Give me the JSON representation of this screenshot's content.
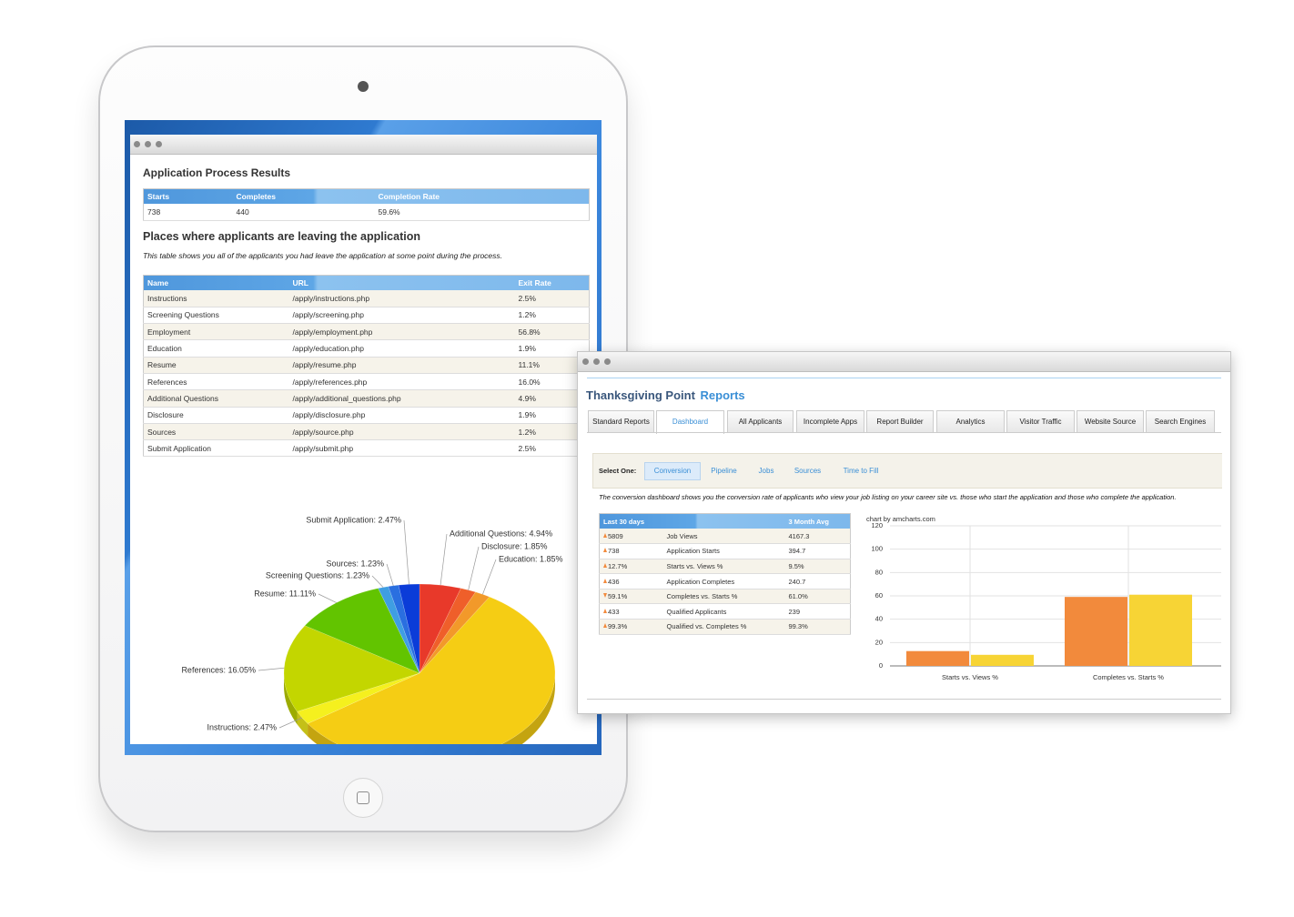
{
  "tablet": {
    "results": {
      "title": "Application Process Results",
      "columns": [
        "Starts",
        "Completes",
        "Completion Rate"
      ],
      "row": [
        "738",
        "440",
        "59.6%"
      ]
    },
    "exits": {
      "title": "Places where applicants are leaving the application",
      "description": "This table shows you all of the applicants you had leave the application at some point during the process.",
      "columns": [
        "Name",
        "URL",
        "Exit Rate"
      ],
      "rows": [
        [
          "Instructions",
          "/apply/instructions.php",
          "2.5%"
        ],
        [
          "Screening Questions",
          "/apply/screening.php",
          "1.2%"
        ],
        [
          "Employment",
          "/apply/employment.php",
          "56.8%"
        ],
        [
          "Education",
          "/apply/education.php",
          "1.9%"
        ],
        [
          "Resume",
          "/apply/resume.php",
          "11.1%"
        ],
        [
          "References",
          "/apply/references.php",
          "16.0%"
        ],
        [
          "Additional Questions",
          "/apply/additional_questions.php",
          "4.9%"
        ],
        [
          "Disclosure",
          "/apply/disclosure.php",
          "1.9%"
        ],
        [
          "Sources",
          "/apply/source.php",
          "1.2%"
        ],
        [
          "Submit Application",
          "/apply/submit.php",
          "2.5%"
        ]
      ]
    },
    "pie_chart": {
      "type": "pie",
      "labels": [
        "Additional Questions: 4.94%",
        "Disclosure: 1.85%",
        "Education: 1.85%",
        null,
        "Instructions: 2.47%",
        "References: 16.05%",
        "Resume: 11.11%",
        "Screening Questions: 1.23%",
        "Sources: 1.23%",
        "Submit Application: 2.47%"
      ],
      "values": [
        4.94,
        1.85,
        1.85,
        56.8,
        2.47,
        16.05,
        11.11,
        1.23,
        1.23,
        2.47
      ],
      "colors": [
        "#e8392a",
        "#ef5f2a",
        "#f2992a",
        "#f5cd14",
        "#f5f01e",
        "#c3d600",
        "#62c400",
        "#3f9ee2",
        "#2a6fe0",
        "#0b3cd8"
      ]
    }
  },
  "reports_window": {
    "title": "Thanksgiving Point",
    "title_accent": "Reports",
    "tabs": [
      "Standard Reports",
      "Dashboard",
      "All Applicants",
      "Incomplete Apps",
      "Report Builder",
      "Analytics",
      "Visitor Traffic",
      "Website Source",
      "Search Engines"
    ],
    "active_tab": 1,
    "selector": {
      "label": "Select One:",
      "options": [
        "Conversion",
        "Pipeline",
        "Jobs",
        "Sources",
        "Time to Fill"
      ],
      "active": 0
    },
    "description": "The conversion dashboard shows you the conversion rate of applicants who view your job listing on your career site vs. those who start the application and those who complete the application.",
    "stats": {
      "columns": [
        "Last 30 days",
        "3 Month Avg"
      ],
      "rows": [
        {
          "trend": "up",
          "value": "5809",
          "label": "Job Views",
          "avg": "4167.3"
        },
        {
          "trend": "up",
          "value": "738",
          "label": "Application Starts",
          "avg": "394.7"
        },
        {
          "trend": "up",
          "value": "12.7%",
          "label": "Starts vs. Views %",
          "avg": "9.5%"
        },
        {
          "trend": "up",
          "value": "436",
          "label": "Application Completes",
          "avg": "240.7"
        },
        {
          "trend": "down",
          "value": "59.1%",
          "label": "Completes vs. Starts %",
          "avg": "61.0%"
        },
        {
          "trend": "up",
          "value": "433",
          "label": "Qualified Applicants",
          "avg": "239"
        },
        {
          "trend": "up",
          "value": "99.3%",
          "label": "Qualified vs. Completes %",
          "avg": "99.3%"
        }
      ]
    },
    "bar_chart": {
      "type": "bar",
      "credit": "chart by amcharts.com",
      "categories": [
        "Starts vs. Views %",
        "Completes vs. Starts %"
      ],
      "series": [
        {
          "color": "#f28a3c",
          "values": [
            12.7,
            59.1
          ]
        },
        {
          "color": "#f7d435",
          "values": [
            9.5,
            61.0
          ]
        }
      ],
      "ylim": [
        0,
        120
      ],
      "yticks": [
        0,
        20,
        40,
        60,
        80,
        100,
        120
      ],
      "grid": true
    }
  }
}
